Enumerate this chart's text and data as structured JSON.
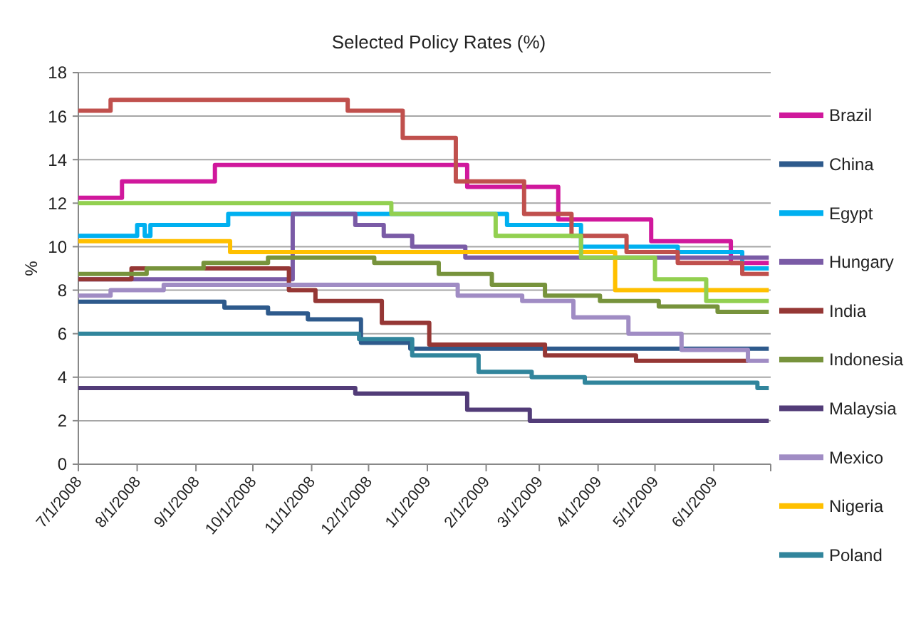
{
  "chart_data": {
    "type": "step",
    "title": "Selected Policy Rates (%)",
    "ylabel": "%",
    "xlim": [
      "2008-07-01",
      "2009-07-01"
    ],
    "xticks": [
      {
        "value": "2008-07-01",
        "label": "7/1/2008"
      },
      {
        "value": "2008-08-01",
        "label": "8/1/2008"
      },
      {
        "value": "2008-09-01",
        "label": "9/1/2008"
      },
      {
        "value": "2008-10-01",
        "label": "10/1/2008"
      },
      {
        "value": "2008-11-01",
        "label": "11/1/2008"
      },
      {
        "value": "2008-12-01",
        "label": "12/1/2008"
      },
      {
        "value": "2009-01-01",
        "label": "1/1/2009"
      },
      {
        "value": "2009-02-01",
        "label": "2/1/2009"
      },
      {
        "value": "2009-03-01",
        "label": "3/1/2009"
      },
      {
        "value": "2009-04-01",
        "label": "4/1/2009"
      },
      {
        "value": "2009-05-01",
        "label": "5/1/2009"
      },
      {
        "value": "2009-06-01",
        "label": "6/1/2009"
      },
      {
        "value": "2009-07-01",
        "label": null
      }
    ],
    "ylim": [
      0,
      18
    ],
    "yticks": [
      0,
      2,
      4,
      6,
      8,
      10,
      12,
      14,
      16,
      18
    ],
    "grid": "y",
    "legend": "right",
    "line_style": "solid",
    "marker": "none",
    "series": [
      {
        "name": "Brazil",
        "color": "#d0189c",
        "x": [
          "2008-07-01",
          "2008-07-24",
          "2008-09-11",
          "2009-01-22",
          "2009-03-11",
          "2009-04-29",
          "2009-06-10",
          "2009-06-30"
        ],
        "values": [
          12.25,
          13,
          13.75,
          12.75,
          11.25,
          10.25,
          9.25,
          9.25
        ]
      },
      {
        "name": "China",
        "color": "#2e5a8c",
        "x": [
          "2008-07-01",
          "2008-09-16",
          "2008-10-09",
          "2008-10-30",
          "2008-11-27",
          "2008-12-23",
          "2009-06-30"
        ],
        "values": [
          7.47,
          7.2,
          6.93,
          6.66,
          5.58,
          5.31,
          5.31
        ]
      },
      {
        "name": "Egypt",
        "color": "#00b0f0",
        "x": [
          "2008-07-01",
          "2008-08-01",
          "2008-08-05",
          "2008-08-08",
          "2008-09-18",
          "2009-02-12",
          "2009-03-23",
          "2009-05-13",
          "2009-06-16",
          "2009-06-30"
        ],
        "values": [
          10.5,
          11,
          10.5,
          11,
          11.5,
          11,
          10,
          9.75,
          9,
          9
        ]
      },
      {
        "name": "Hungary",
        "color": "#7a5ba6",
        "x": [
          "2008-07-01",
          "2008-10-22",
          "2008-11-24",
          "2008-12-09",
          "2008-12-24",
          "2009-01-21",
          "2009-06-30"
        ],
        "values": [
          8.5,
          11.5,
          11,
          10.5,
          10,
          9.5,
          9.5
        ]
      },
      {
        "name": "India",
        "color": "#953735",
        "x": [
          "2008-07-01",
          "2008-07-29",
          "2008-10-20",
          "2008-11-03",
          "2008-12-08",
          "2009-01-02",
          "2009-03-04",
          "2009-04-21",
          "2009-06-19"
        ],
        "values": [
          8.5,
          9,
          8,
          7.5,
          6.5,
          5.5,
          5,
          4.75,
          4.75
        ]
      },
      {
        "name": "Indonesia",
        "color": "#77933c",
        "x": [
          "2008-07-01",
          "2008-08-06",
          "2008-09-05",
          "2008-10-09",
          "2008-12-04",
          "2009-01-07",
          "2009-02-04",
          "2009-03-04",
          "2009-04-02",
          "2009-05-03",
          "2009-06-03",
          "2009-06-30"
        ],
        "values": [
          8.75,
          9,
          9.25,
          9.5,
          9.25,
          8.75,
          8.25,
          7.75,
          7.5,
          7.25,
          7,
          7
        ]
      },
      {
        "name": "Malaysia",
        "color": "#523c78",
        "x": [
          "2008-07-01",
          "2008-11-24",
          "2009-01-22",
          "2009-02-24",
          "2009-06-30"
        ],
        "values": [
          3.5,
          3.25,
          2.5,
          2,
          2
        ]
      },
      {
        "name": "Mexico",
        "color": "#a08cc4",
        "x": [
          "2008-07-01",
          "2008-07-18",
          "2008-08-15",
          "2009-01-17",
          "2009-02-20",
          "2009-03-19",
          "2009-04-17",
          "2009-05-15",
          "2009-06-19",
          "2009-06-30"
        ],
        "values": [
          7.75,
          8,
          8.25,
          7.75,
          7.5,
          6.75,
          6,
          5.25,
          4.75,
          4.75
        ]
      },
      {
        "name": "Nigeria",
        "color": "#ffc000",
        "x": [
          "2008-07-01",
          "2008-09-19",
          "2009-04-10",
          "2009-06-30"
        ],
        "values": [
          10.25,
          9.75,
          8,
          8
        ]
      },
      {
        "name": "Poland",
        "color": "#31859c",
        "x": [
          "2008-07-01",
          "2008-11-26",
          "2008-12-24",
          "2009-01-28",
          "2009-02-25",
          "2009-03-25",
          "2009-06-24",
          "2009-06-30"
        ],
        "values": [
          6,
          5.75,
          5,
          4.25,
          4,
          3.75,
          3.5,
          3.5
        ]
      },
      {
        "color": "#c0504d",
        "x": [
          "2008-07-01",
          "2008-07-18",
          "2008-11-20",
          "2008-12-19",
          "2009-01-16",
          "2009-02-21",
          "2009-03-18",
          "2009-04-16",
          "2009-05-13",
          "2009-06-16",
          "2009-06-30"
        ],
        "values": [
          16.25,
          16.75,
          16.25,
          15,
          13,
          11.5,
          10.5,
          9.75,
          9.25,
          8.75,
          8.75
        ]
      },
      {
        "color": "#92d050",
        "x": [
          "2008-07-01",
          "2008-12-13",
          "2009-02-06",
          "2009-03-23",
          "2009-05-01",
          "2009-05-28",
          "2009-06-30"
        ],
        "values": [
          12,
          11.5,
          10.5,
          9.5,
          8.5,
          7.5,
          7.5
        ]
      }
    ]
  }
}
